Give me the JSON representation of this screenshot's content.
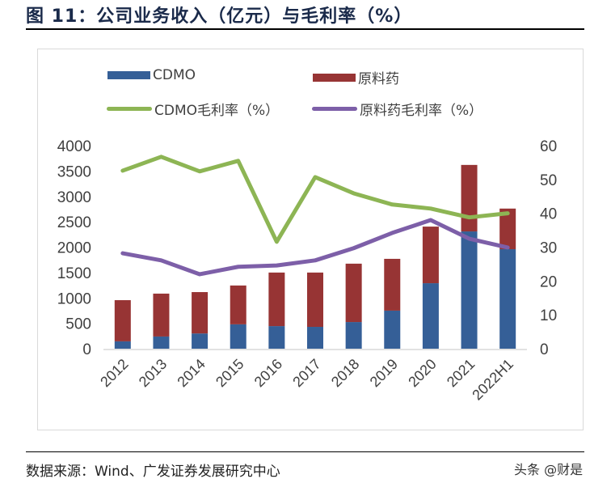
{
  "title": "图 11：公司业务收入（亿元）与毛利率（%）",
  "source": "数据来源：Wind、广发证券发展研究中心",
  "watermark": "头条 @财是",
  "chart_data": {
    "type": "bar",
    "stacked": true,
    "categories": [
      "2012",
      "2013",
      "2014",
      "2015",
      "2016",
      "2017",
      "2018",
      "2019",
      "2020",
      "2021",
      "2022H1"
    ],
    "series": [
      {
        "name": "CDMO",
        "type": "bar",
        "axis": "left",
        "color": "#355f97",
        "values": [
          145,
          240,
          300,
          480,
          445,
          430,
          525,
          750,
          1290,
          2310,
          1960
        ]
      },
      {
        "name": "原料药",
        "type": "bar",
        "axis": "left",
        "color": "#973434",
        "values": [
          811,
          845,
          815,
          765,
          1055,
          1070,
          1150,
          1020,
          1115,
          1310,
          800
        ]
      },
      {
        "name": "CDMO毛利率（%）",
        "type": "line",
        "axis": "right",
        "color": "#8db554",
        "values": [
          52.6,
          56.7,
          52.4,
          55.5,
          31.6,
          50.7,
          45.9,
          42.6,
          41.4,
          38.8,
          40.0
        ]
      },
      {
        "name": "原料药毛利率（%）",
        "type": "line",
        "axis": "right",
        "color": "#7d5fa8",
        "values": [
          28.2,
          26.1,
          22.0,
          24.2,
          24.6,
          26.1,
          29.7,
          34.2,
          38.0,
          32.5,
          29.9
        ]
      }
    ],
    "y_left": {
      "min": 0,
      "max": 4000,
      "ticks": [
        "0",
        "500",
        "1000",
        "1500",
        "2000",
        "2500",
        "3000",
        "3500",
        "4000"
      ]
    },
    "y_right": {
      "min": 0,
      "max": 60,
      "ticks": [
        "0",
        "10",
        "20",
        "30",
        "40",
        "50",
        "60"
      ]
    },
    "grid": false,
    "legend": "top"
  }
}
